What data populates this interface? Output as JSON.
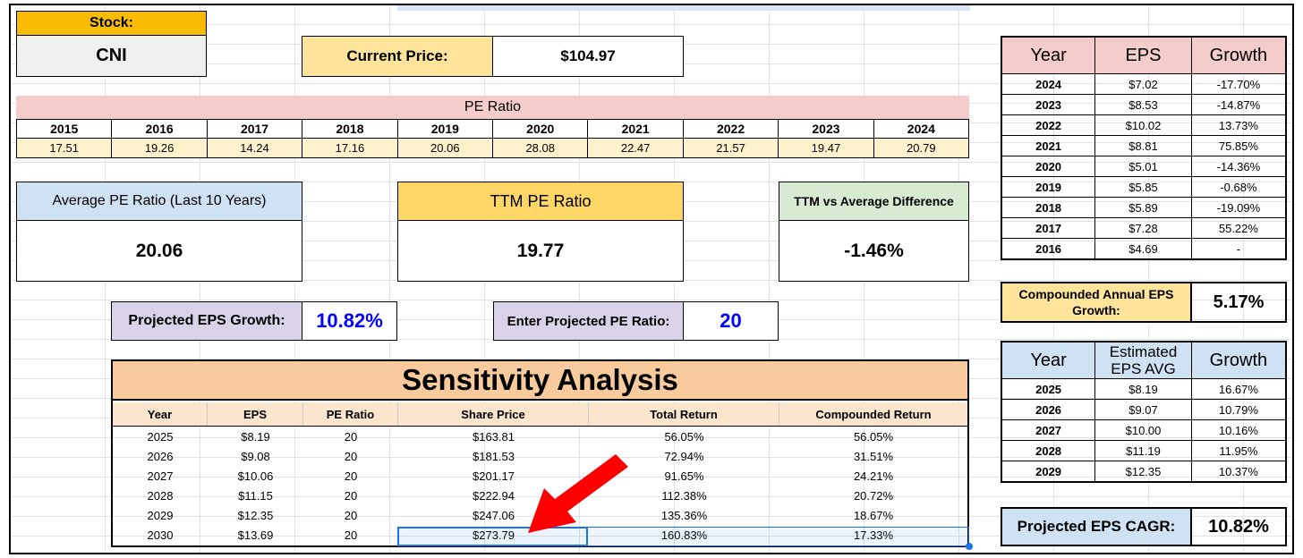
{
  "stock": {
    "label": "Stock:",
    "ticker": "CNI"
  },
  "current_price": {
    "label": "Current Price:",
    "value": "$104.97"
  },
  "pe_ratio": {
    "title": "PE Ratio",
    "years": [
      "2015",
      "2016",
      "2017",
      "2018",
      "2019",
      "2020",
      "2021",
      "2022",
      "2023",
      "2024"
    ],
    "values": [
      "17.51",
      "19.26",
      "14.24",
      "17.16",
      "20.06",
      "28.08",
      "22.47",
      "21.57",
      "19.47",
      "20.79"
    ]
  },
  "avg_pe": {
    "label": "Average PE Ratio (Last 10 Years)",
    "value": "20.06"
  },
  "ttm_pe": {
    "label": "TTM PE Ratio",
    "value": "19.77"
  },
  "ttm_vs_avg": {
    "label": "TTM vs Average Difference",
    "value": "-1.46%"
  },
  "projected_eps_growth": {
    "label": "Projected EPS Growth:",
    "value": "10.82%"
  },
  "projected_pe": {
    "label": "Enter Projected PE Ratio:",
    "value": "20"
  },
  "sensitivity": {
    "title": "Sensitivity Analysis",
    "headers": [
      "Year",
      "EPS",
      "PE Ratio",
      "Share Price",
      "Total Return",
      "Compounded Return"
    ],
    "rows": [
      [
        "2025",
        "$8.19",
        "20",
        "$163.81",
        "56.05%",
        "56.05%"
      ],
      [
        "2026",
        "$9.08",
        "20",
        "$181.53",
        "72.94%",
        "31.51%"
      ],
      [
        "2027",
        "$10.06",
        "20",
        "$201.17",
        "91.65%",
        "24.21%"
      ],
      [
        "2028",
        "$11.15",
        "20",
        "$222.94",
        "112.38%",
        "20.72%"
      ],
      [
        "2029",
        "$12.35",
        "20",
        "$247.06",
        "135.36%",
        "18.67%"
      ],
      [
        "2030",
        "$13.69",
        "20",
        "$273.79",
        "160.83%",
        "17.33%"
      ]
    ]
  },
  "eps_history": {
    "headers": [
      "Year",
      "EPS",
      "Growth"
    ],
    "rows": [
      [
        "2024",
        "$7.02",
        "-17.70%"
      ],
      [
        "2023",
        "$8.53",
        "-14.87%"
      ],
      [
        "2022",
        "$10.02",
        "13.73%"
      ],
      [
        "2021",
        "$8.81",
        "75.85%"
      ],
      [
        "2020",
        "$5.01",
        "-14.36%"
      ],
      [
        "2019",
        "$5.85",
        "-0.68%"
      ],
      [
        "2018",
        "$5.89",
        "-19.09%"
      ],
      [
        "2017",
        "$7.28",
        "55.22%"
      ],
      [
        "2016",
        "$4.69",
        "-"
      ]
    ]
  },
  "cagr_eps": {
    "label": "Compounded Annual EPS Growth:",
    "value": "5.17%"
  },
  "est_eps": {
    "headers": [
      "Year",
      "Estimated EPS AVG",
      "Growth"
    ],
    "rows": [
      [
        "2025",
        "$8.19",
        "16.67%"
      ],
      [
        "2026",
        "$9.07",
        "10.79%"
      ],
      [
        "2027",
        "$10.00",
        "10.16%"
      ],
      [
        "2028",
        "$11.19",
        "11.95%"
      ],
      [
        "2029",
        "$12.35",
        "10.37%"
      ]
    ]
  },
  "projected_cagr": {
    "label": "Projected EPS CAGR:",
    "value": "10.82%"
  },
  "colors": {
    "stock_label": "#f9bc02",
    "price_label": "#fde49a",
    "pe_title": "#f4cccc",
    "pe_values": "#fdf2cc",
    "avg_label": "#cfe2f3",
    "ttm_label": "#fdd666",
    "diff_label": "#d9ead3",
    "purple": "#d9d2e9",
    "sens_title": "#f9cb9c",
    "sens_header": "#fce5cd",
    "blue_text": "#0000ff",
    "arrow": "#ff0000"
  }
}
